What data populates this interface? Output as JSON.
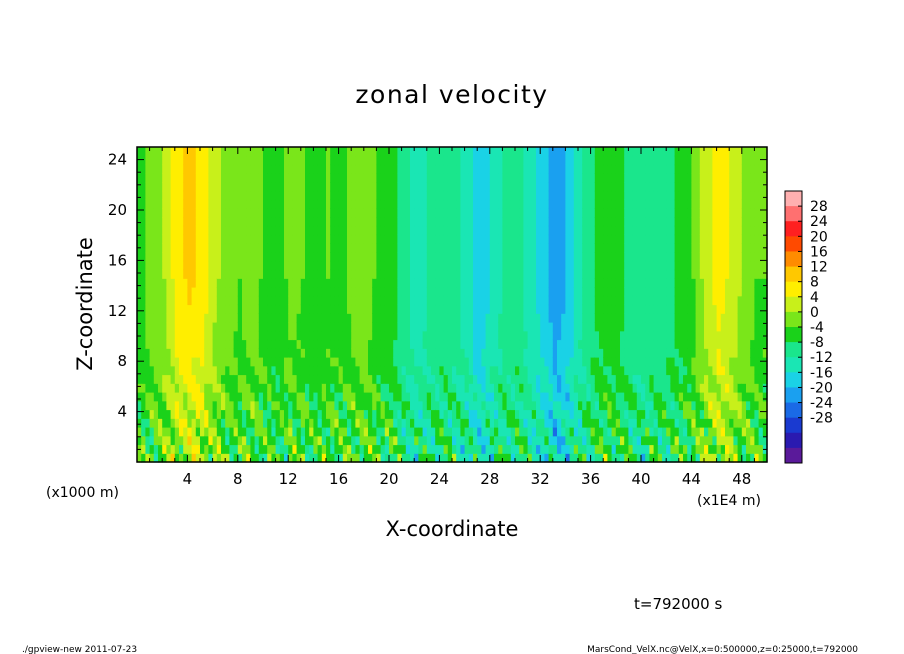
{
  "chart_data": {
    "type": "heatmap",
    "title": "zonal velocity",
    "xlabel": "X-coordinate",
    "ylabel": "Z-coordinate",
    "x_unit_label": "(x1E4 m)",
    "y_unit_label": "(x1000 m)",
    "x_ticks": [
      "4",
      "8",
      "12",
      "16",
      "20",
      "24",
      "28",
      "32",
      "36",
      "40",
      "44",
      "48"
    ],
    "y_ticks": [
      "4",
      "8",
      "12",
      "16",
      "20",
      "24"
    ],
    "xlim": [
      0,
      50
    ],
    "ylim": [
      0,
      25
    ],
    "colorbar": {
      "levels": [
        -30,
        -28,
        -24,
        -20,
        -16,
        -12,
        -8,
        -4,
        0,
        4,
        8,
        12,
        16,
        20,
        24,
        28,
        30
      ],
      "labels": [
        "28",
        "24",
        "20",
        "16",
        "12",
        "8",
        "4",
        "0",
        "-4",
        "-8",
        "-12",
        "-16",
        "-20",
        "-24",
        "-28"
      ],
      "colors": [
        "#5a1a9a",
        "#2a1ab0",
        "#1a3ad0",
        "#1a6ae6",
        "#1aa0f0",
        "#1ad2e6",
        "#1ae6b4",
        "#1ae68c",
        "#1ad21a",
        "#7ae61a",
        "#c8f01a",
        "#ffee00",
        "#ffc800",
        "#ff8c00",
        "#ff4a00",
        "#ff2020",
        "#ff7070",
        "#ffb0b0"
      ]
    },
    "columns": [
      {
        "x": 0,
        "base": 2
      },
      {
        "x": 1,
        "base": 6
      },
      {
        "x": 2,
        "base": 8
      },
      {
        "x": 3,
        "base": 14
      },
      {
        "x": 4,
        "base": 17
      },
      {
        "x": 5,
        "base": 15
      },
      {
        "x": 6,
        "base": 9
      },
      {
        "x": 7,
        "base": 6
      },
      {
        "x": 8,
        "base": 4
      },
      {
        "x": 9,
        "base": 6
      },
      {
        "x": 10,
        "base": 3
      },
      {
        "x": 11,
        "base": 2
      },
      {
        "x": 12,
        "base": 5
      },
      {
        "x": 13,
        "base": 4
      },
      {
        "x": 14,
        "base": 2
      },
      {
        "x": 15,
        "base": 4
      },
      {
        "x": 16,
        "base": 3
      },
      {
        "x": 17,
        "base": 5
      },
      {
        "x": 18,
        "base": 6
      },
      {
        "x": 19,
        "base": 3
      },
      {
        "x": 20,
        "base": 2
      },
      {
        "x": 21,
        "base": -3
      },
      {
        "x": 22,
        "base": -6
      },
      {
        "x": 23,
        "base": -4
      },
      {
        "x": 24,
        "base": -2
      },
      {
        "x": 25,
        "base": -3
      },
      {
        "x": 26,
        "base": -6
      },
      {
        "x": 27,
        "base": -12
      },
      {
        "x": 28,
        "base": -7
      },
      {
        "x": 29,
        "base": -3
      },
      {
        "x": 30,
        "base": -2
      },
      {
        "x": 31,
        "base": -6
      },
      {
        "x": 32,
        "base": -10
      },
      {
        "x": 33,
        "base": -15
      },
      {
        "x": 34,
        "base": -12
      },
      {
        "x": 35,
        "base": -5
      },
      {
        "x": 36,
        "base": -1
      },
      {
        "x": 37,
        "base": 2
      },
      {
        "x": 38,
        "base": 1
      },
      {
        "x": 39,
        "base": -2
      },
      {
        "x": 40,
        "base": -4
      },
      {
        "x": 41,
        "base": -2
      },
      {
        "x": 42,
        "base": -1
      },
      {
        "x": 43,
        "base": 1
      },
      {
        "x": 44,
        "base": 4
      },
      {
        "x": 45,
        "base": 10
      },
      {
        "x": 46,
        "base": 14
      },
      {
        "x": 47,
        "base": 11
      },
      {
        "x": 48,
        "base": 7
      },
      {
        "x": 49,
        "base": 4
      }
    ]
  },
  "footer": {
    "time": "t=792000 s",
    "left": "./gpview-new  2011-07-23",
    "right": "MarsCond_VelX.nc@VelX,x=0:500000,z=0:25000,t=792000"
  }
}
